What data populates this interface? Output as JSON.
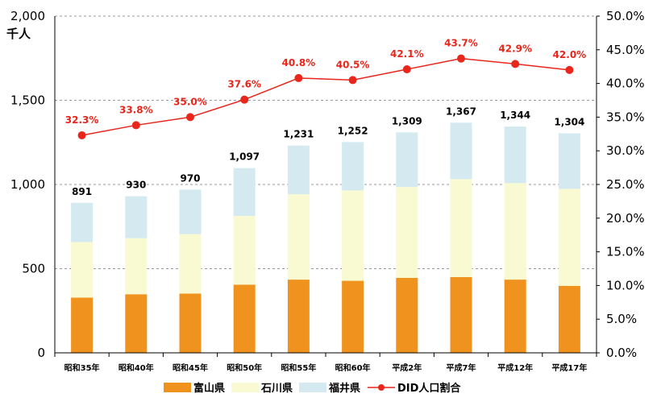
{
  "chart_data": {
    "type": "bar",
    "stacked": true,
    "categories": [
      "昭和35年",
      "昭和40年",
      "昭和45年",
      "昭和50年",
      "昭和55年",
      "昭和60年",
      "平成2年",
      "平成7年",
      "平成12年",
      "平成17年"
    ],
    "series": [
      {
        "name": "富山県",
        "values": [
          328,
          348,
          352,
          405,
          435,
          428,
          445,
          450,
          435,
          398
        ],
        "color": "#f0931e"
      },
      {
        "name": "石川県",
        "values": [
          330,
          333,
          353,
          408,
          507,
          537,
          540,
          582,
          573,
          576
        ],
        "color": "#fafad2"
      },
      {
        "name": "福井県",
        "values": [
          233,
          249,
          265,
          284,
          289,
          287,
          324,
          335,
          336,
          330
        ],
        "color": "#d4eaf0"
      }
    ],
    "totals": [
      "891",
      "930",
      "970",
      "1,097",
      "1,231",
      "1,252",
      "1,309",
      "1,367",
      "1,344",
      "1,304"
    ],
    "line_series": {
      "name": "DID人口割合",
      "values": [
        32.3,
        33.8,
        35.0,
        37.6,
        40.8,
        40.5,
        42.1,
        43.7,
        42.9,
        42.0
      ],
      "labels": [
        "32.3%",
        "33.8%",
        "35.0%",
        "37.6%",
        "40.8%",
        "40.5%",
        "42.1%",
        "43.7%",
        "42.9%",
        "42.0%"
      ],
      "color": "#e8261b"
    },
    "y_left": {
      "label": "千人",
      "ylim": [
        0,
        2000
      ],
      "ticks": [
        "0",
        "500",
        "1,000",
        "1,500",
        "2,000"
      ]
    },
    "y_right": {
      "ylim": [
        0,
        50
      ],
      "ticks": [
        "0.0%",
        "5.0%",
        "10.0%",
        "15.0%",
        "20.0%",
        "25.0%",
        "30.0%",
        "35.0%",
        "40.0%",
        "45.0%",
        "50.0%"
      ]
    },
    "grid": "horizontal-dashed",
    "legend_position": "bottom"
  }
}
